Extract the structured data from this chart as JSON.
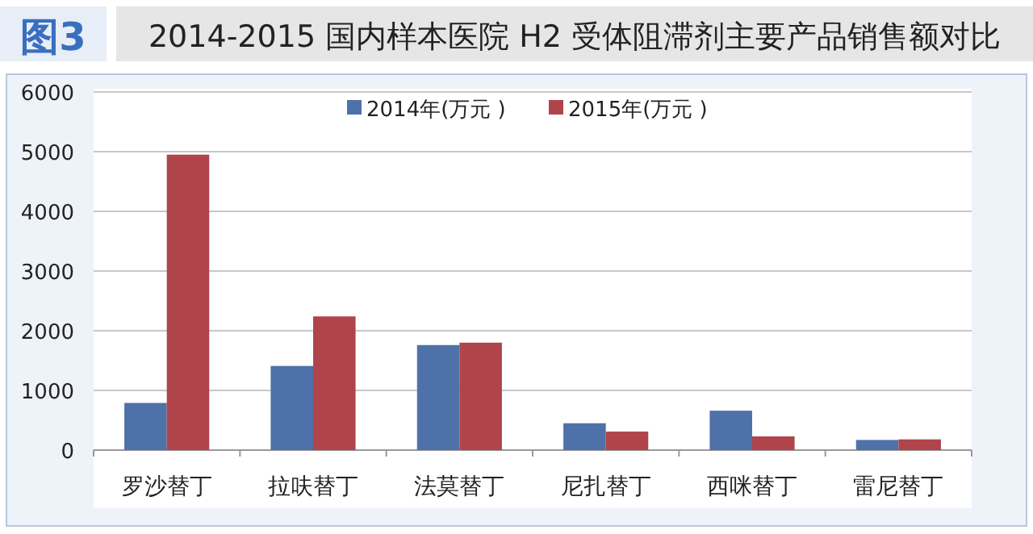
{
  "chart_data": {
    "type": "bar",
    "title": "2014-2015 国内样本医院 H2 受体阻滞剂主要产品销售额对比",
    "annotations": [
      "图3"
    ],
    "categories": [
      "罗沙替丁",
      "拉呋替丁",
      "法莫替丁",
      "尼扎替丁",
      "西咪替丁",
      "雷尼替丁"
    ],
    "series": [
      {
        "name": "2014年(万元 )",
        "color": "#4f71a9",
        "values": [
          790,
          1410,
          1760,
          450,
          660,
          170
        ]
      },
      {
        "name": "2015年(万元 )",
        "color": "#b0444b",
        "values": [
          4950,
          2240,
          1800,
          310,
          230,
          180
        ]
      }
    ],
    "ylim": [
      0,
      6000
    ],
    "yticks": [
      0,
      1000,
      2000,
      3000,
      4000,
      5000,
      6000
    ],
    "grid": "y",
    "legend": "top"
  }
}
